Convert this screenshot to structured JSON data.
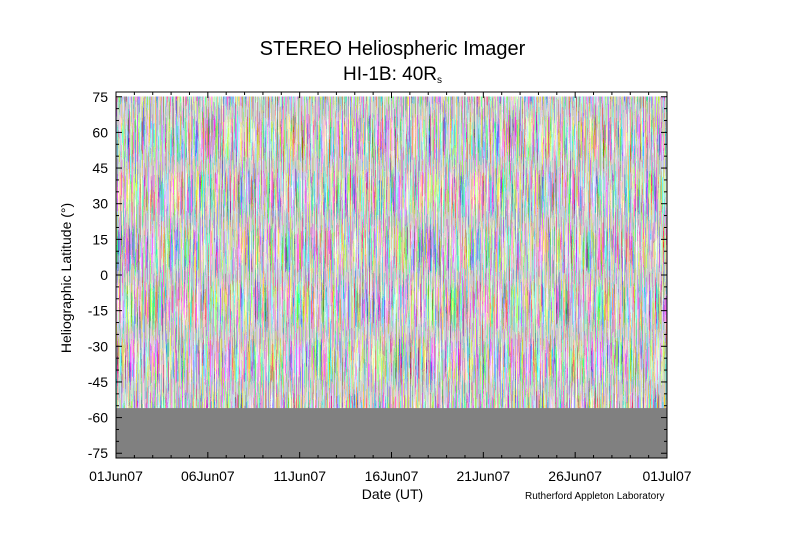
{
  "chart_data": {
    "type": "heatmap",
    "title": "STEREO Heliospheric Imager",
    "subtitle_main": "HI-1B: 40R",
    "subtitle_sub": "s",
    "xlabel": "Date (UT)",
    "ylabel": "Heliographic Latitude (°)",
    "credit": "Rutherford Appleton Laboratory",
    "x_range": [
      "01Jun07",
      "01Jul07"
    ],
    "x_days": [
      0,
      30
    ],
    "ylim": [
      -77,
      77
    ],
    "x_ticks": [
      {
        "label": "01Jun07",
        "day": 0
      },
      {
        "label": "06Jun07",
        "day": 5
      },
      {
        "label": "11Jun07",
        "day": 10
      },
      {
        "label": "16Jun07",
        "day": 15
      },
      {
        "label": "21Jun07",
        "day": 20
      },
      {
        "label": "26Jun07",
        "day": 25
      },
      {
        "label": "01Jul07",
        "day": 30
      }
    ],
    "y_ticks": [
      {
        "label": "75",
        "value": 75
      },
      {
        "label": "60",
        "value": 60
      },
      {
        "label": "45",
        "value": 45
      },
      {
        "label": "30",
        "value": 30
      },
      {
        "label": "15",
        "value": 15
      },
      {
        "label": "0",
        "value": 0
      },
      {
        "label": "-15",
        "value": -15
      },
      {
        "label": "-30",
        "value": -30
      },
      {
        "label": "-45",
        "value": -45
      },
      {
        "label": "-60",
        "value": -60
      },
      {
        "label": "-75",
        "value": -75
      }
    ],
    "data_coverage": {
      "lat_max": 75,
      "lat_min": -56
    },
    "no_data_fill": "#808080",
    "grid": false
  }
}
